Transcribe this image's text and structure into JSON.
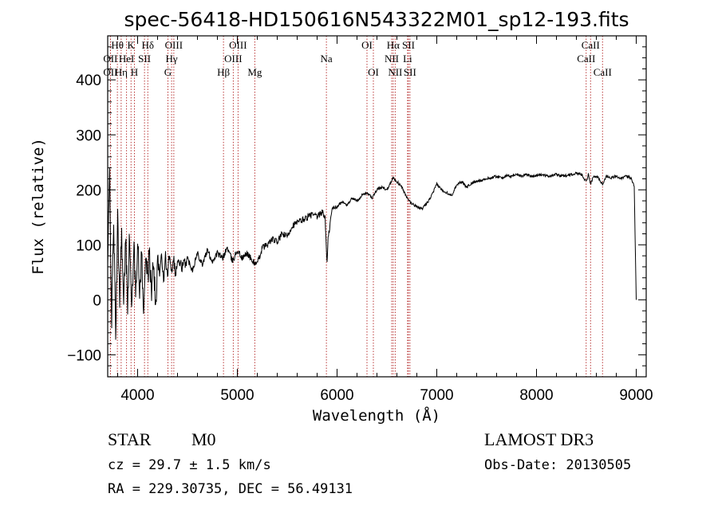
{
  "chart_data": {
    "type": "line",
    "title": "spec-56418-HD150616N543322M01_sp12-193.fits",
    "xlabel": "Wavelength (Å)",
    "ylabel": "Flux (relative)",
    "xlim": [
      3700,
      9100
    ],
    "ylim": [
      -140,
      480
    ],
    "xticks": [
      4000,
      5000,
      6000,
      7000,
      8000,
      9000
    ],
    "yticks": [
      -100,
      0,
      100,
      200,
      300,
      400
    ],
    "series": [
      {
        "name": "flux",
        "points": [
          [
            3700,
            60
          ],
          [
            3720,
            230
          ],
          [
            3740,
            -40
          ],
          [
            3760,
            150
          ],
          [
            3780,
            -70
          ],
          [
            3800,
            140
          ],
          [
            3820,
            10
          ],
          [
            3840,
            130
          ],
          [
            3860,
            -20
          ],
          [
            3880,
            110
          ],
          [
            3900,
            0
          ],
          [
            3920,
            120
          ],
          [
            3940,
            -30
          ],
          [
            3960,
            100
          ],
          [
            3980,
            20
          ],
          [
            4000,
            110
          ],
          [
            4020,
            10
          ],
          [
            4040,
            90
          ],
          [
            4060,
            -40
          ],
          [
            4080,
            100
          ],
          [
            4100,
            30
          ],
          [
            4120,
            90
          ],
          [
            4140,
            0
          ],
          [
            4160,
            80
          ],
          [
            4180,
            -20
          ],
          [
            4200,
            80
          ],
          [
            4220,
            40
          ],
          [
            4240,
            90
          ],
          [
            4260,
            30
          ],
          [
            4280,
            80
          ],
          [
            4300,
            40
          ],
          [
            4320,
            90
          ],
          [
            4340,
            50
          ],
          [
            4360,
            80
          ],
          [
            4380,
            45
          ],
          [
            4400,
            70
          ],
          [
            4450,
            60
          ],
          [
            4500,
            75
          ],
          [
            4550,
            55
          ],
          [
            4600,
            85
          ],
          [
            4650,
            65
          ],
          [
            4700,
            90
          ],
          [
            4750,
            70
          ],
          [
            4800,
            85
          ],
          [
            4850,
            75
          ],
          [
            4900,
            95
          ],
          [
            4950,
            70
          ],
          [
            5000,
            90
          ],
          [
            5050,
            75
          ],
          [
            5100,
            85
          ],
          [
            5150,
            70
          ],
          [
            5200,
            65
          ],
          [
            5250,
            95
          ],
          [
            5300,
            100
          ],
          [
            5350,
            110
          ],
          [
            5400,
            105
          ],
          [
            5450,
            120
          ],
          [
            5500,
            115
          ],
          [
            5550,
            135
          ],
          [
            5600,
            140
          ],
          [
            5650,
            145
          ],
          [
            5700,
            150
          ],
          [
            5750,
            155
          ],
          [
            5800,
            150
          ],
          [
            5850,
            160
          ],
          [
            5880,
            150
          ],
          [
            5900,
            65
          ],
          [
            5910,
            110
          ],
          [
            5950,
            165
          ],
          [
            6000,
            170
          ],
          [
            6050,
            178
          ],
          [
            6100,
            172
          ],
          [
            6150,
            185
          ],
          [
            6200,
            180
          ],
          [
            6250,
            190
          ],
          [
            6300,
            195
          ],
          [
            6350,
            185
          ],
          [
            6400,
            200
          ],
          [
            6450,
            205
          ],
          [
            6500,
            200
          ],
          [
            6540,
            215
          ],
          [
            6563,
            222
          ],
          [
            6600,
            215
          ],
          [
            6650,
            205
          ],
          [
            6700,
            185
          ],
          [
            6750,
            175
          ],
          [
            6800,
            170
          ],
          [
            6850,
            165
          ],
          [
            6900,
            175
          ],
          [
            6950,
            190
          ],
          [
            7000,
            210
          ],
          [
            7050,
            200
          ],
          [
            7100,
            195
          ],
          [
            7150,
            190
          ],
          [
            7200,
            210
          ],
          [
            7250,
            215
          ],
          [
            7300,
            205
          ],
          [
            7350,
            212
          ],
          [
            7400,
            215
          ],
          [
            7450,
            218
          ],
          [
            7500,
            220
          ],
          [
            7550,
            222
          ],
          [
            7600,
            225
          ],
          [
            7650,
            222
          ],
          [
            7700,
            225
          ],
          [
            7750,
            225
          ],
          [
            7800,
            228
          ],
          [
            7850,
            225
          ],
          [
            7900,
            228
          ],
          [
            7950,
            225
          ],
          [
            8000,
            226
          ],
          [
            8050,
            228
          ],
          [
            8100,
            225
          ],
          [
            8150,
            226
          ],
          [
            8200,
            228
          ],
          [
            8250,
            225
          ],
          [
            8300,
            226
          ],
          [
            8350,
            228
          ],
          [
            8400,
            230
          ],
          [
            8450,
            229
          ],
          [
            8498,
            215
          ],
          [
            8520,
            228
          ],
          [
            8542,
            212
          ],
          [
            8580,
            225
          ],
          [
            8620,
            222
          ],
          [
            8662,
            210
          ],
          [
            8700,
            225
          ],
          [
            8750,
            222
          ],
          [
            8800,
            225
          ],
          [
            8850,
            220
          ],
          [
            8900,
            225
          ],
          [
            8950,
            222
          ],
          [
            8980,
            205
          ],
          [
            9000,
            0
          ]
        ]
      }
    ],
    "spectral_lines": [
      {
        "label": "Hθ",
        "x": 3797,
        "row": 1
      },
      {
        "label": "OII",
        "x": 3727,
        "row": 2
      },
      {
        "label": "OII",
        "x": 3727,
        "row": 3
      },
      {
        "label": "Hη",
        "x": 3835,
        "row": 3
      },
      {
        "label": "HeI",
        "x": 3889,
        "row": 2
      },
      {
        "label": "K",
        "x": 3934,
        "row": 1
      },
      {
        "label": "H",
        "x": 3968,
        "row": 3
      },
      {
        "label": "SII",
        "x": 4069,
        "row": 2
      },
      {
        "label": "Hδ",
        "x": 4102,
        "row": 1
      },
      {
        "label": "G",
        "x": 4304,
        "row": 3
      },
      {
        "label": "Hγ",
        "x": 4341,
        "row": 2
      },
      {
        "label": "OIII",
        "x": 4363,
        "row": 1
      },
      {
        "label": "Hβ",
        "x": 4861,
        "row": 3
      },
      {
        "label": "OIII",
        "x": 4959,
        "row": 2
      },
      {
        "label": "OIII",
        "x": 5007,
        "row": 1
      },
      {
        "label": "Mg",
        "x": 5175,
        "row": 3
      },
      {
        "label": "Na",
        "x": 5893,
        "row": 2
      },
      {
        "label": "OI",
        "x": 6300,
        "row": 1
      },
      {
        "label": "OI",
        "x": 6364,
        "row": 3
      },
      {
        "label": "NII",
        "x": 6548,
        "row": 2
      },
      {
        "label": "Hα",
        "x": 6563,
        "row": 1
      },
      {
        "label": "NII",
        "x": 6583,
        "row": 3
      },
      {
        "label": "Li",
        "x": 6707,
        "row": 2
      },
      {
        "label": "SII",
        "x": 6716,
        "row": 1
      },
      {
        "label": "SII",
        "x": 6731,
        "row": 3
      },
      {
        "label": "CaII",
        "x": 8498,
        "row": 2
      },
      {
        "label": "CaII",
        "x": 8542,
        "row": 1
      },
      {
        "label": "CaII",
        "x": 8662,
        "row": 3
      }
    ]
  },
  "info": {
    "class": "STAR",
    "subclass": "M0",
    "redshift": "cz = 29.7 ± 1.5 km/s",
    "coords": "RA = 229.30735, DEC =  56.49131",
    "survey": "LAMOST DR3",
    "obs_date": "Obs-Date: 20130505"
  },
  "colors": {
    "line_marker": "#b22222",
    "spectrum": "#000000",
    "axes": "#000000"
  }
}
